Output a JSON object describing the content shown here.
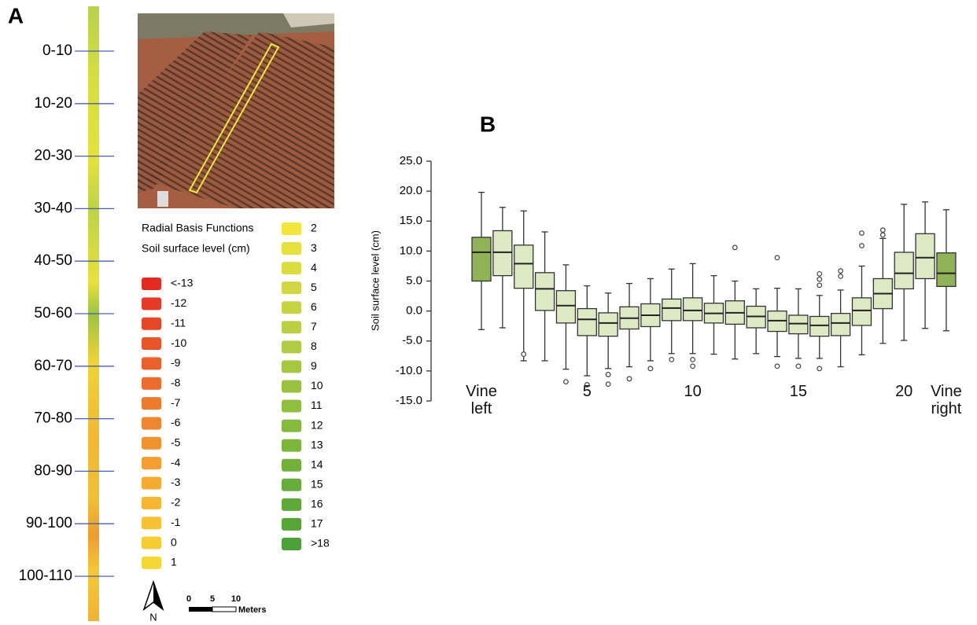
{
  "panel_a": {
    "label": "A",
    "strip_labels": [
      "0-10",
      "10-20",
      "20-30",
      "30-40",
      "40-50",
      "50-60",
      "60-70",
      "70-80",
      "80-90",
      "90-100",
      "100-110"
    ],
    "legend_title": "Radial Basis Functions",
    "legend_subtitle": "Soil surface level (cm)",
    "legend_left": [
      {
        "label": "<-13",
        "color": "#e32b23"
      },
      {
        "label": "-12",
        "color": "#e53a25"
      },
      {
        "label": "-11",
        "color": "#e64727"
      },
      {
        "label": "-10",
        "color": "#e85428"
      },
      {
        "label": "-9",
        "color": "#ea6129"
      },
      {
        "label": "-8",
        "color": "#ec6d2b"
      },
      {
        "label": "-7",
        "color": "#ee7a2c"
      },
      {
        "label": "-6",
        "color": "#f0862d"
      },
      {
        "label": "-5",
        "color": "#f2922e"
      },
      {
        "label": "-4",
        "color": "#f49e2f"
      },
      {
        "label": "-3",
        "color": "#f5aa30"
      },
      {
        "label": "-2",
        "color": "#f6b631"
      },
      {
        "label": "-1",
        "color": "#f7c232"
      },
      {
        "label": "0",
        "color": "#f5cd33"
      },
      {
        "label": "1",
        "color": "#f4d836"
      }
    ],
    "legend_right": [
      {
        "label": "2",
        "color": "#f2e63a"
      },
      {
        "label": "3",
        "color": "#e6e03e"
      },
      {
        "label": "4",
        "color": "#dbdc40"
      },
      {
        "label": "5",
        "color": "#d1d742"
      },
      {
        "label": "6",
        "color": "#c6d343"
      },
      {
        "label": "7",
        "color": "#bbcf43"
      },
      {
        "label": "8",
        "color": "#b1cb42"
      },
      {
        "label": "9",
        "color": "#a6c741"
      },
      {
        "label": "10",
        "color": "#9bc23f"
      },
      {
        "label": "11",
        "color": "#90be3e"
      },
      {
        "label": "12",
        "color": "#86ba3c"
      },
      {
        "label": "13",
        "color": "#7bb63b"
      },
      {
        "label": "14",
        "color": "#71b13a"
      },
      {
        "label": "15",
        "color": "#67ad39"
      },
      {
        "label": "16",
        "color": "#5ea938"
      },
      {
        "label": "17",
        "color": "#55a537"
      },
      {
        "label": ">18",
        "color": "#4ca136"
      }
    ],
    "north": "N",
    "scale_labels": [
      "0",
      "5",
      "10"
    ],
    "scale_unit": "Meters"
  },
  "chart_data": {
    "type": "box",
    "panel_label": "B",
    "y_label": "Soil surface level (cm)",
    "categories": [
      "Vine left",
      null,
      null,
      null,
      null,
      "5",
      null,
      null,
      null,
      null,
      "10",
      null,
      null,
      null,
      null,
      "15",
      null,
      null,
      null,
      null,
      "20",
      null,
      "Vine right"
    ],
    "colors": [
      "#8fb356",
      "#dce9c3",
      "#dce9c3",
      "#dce9c3",
      "#dce9c3",
      "#dce9c3",
      "#dce9c3",
      "#dce9c3",
      "#dce9c3",
      "#dce9c3",
      "#dce9c3",
      "#dce9c3",
      "#dce9c3",
      "#dce9c3",
      "#dce9c3",
      "#dce9c3",
      "#dce9c3",
      "#dce9c3",
      "#dce9c3",
      "#dce9c3",
      "#dce9c3",
      "#dce9c3",
      "#8fb356"
    ],
    "boxes": [
      {
        "low": -3.1,
        "q1": 5.0,
        "median": 9.8,
        "q3": 12.3,
        "high": 19.8,
        "outliers": []
      },
      {
        "low": -2.8,
        "q1": 5.9,
        "median": 9.8,
        "q3": 13.4,
        "high": 17.3,
        "outliers": []
      },
      {
        "low": -8.3,
        "q1": 3.8,
        "median": 7.9,
        "q3": 11.0,
        "high": 16.7,
        "outliers": [
          -7.2
        ]
      },
      {
        "low": -8.3,
        "q1": 0.1,
        "median": 3.7,
        "q3": 6.4,
        "high": 13.2,
        "outliers": []
      },
      {
        "low": -9.7,
        "q1": -2.0,
        "median": 0.9,
        "q3": 3.4,
        "high": 7.7,
        "outliers": [
          -11.8
        ]
      },
      {
        "low": -10.8,
        "q1": -4.1,
        "median": -1.4,
        "q3": 0.4,
        "high": 4.2,
        "outliers": [
          -12.3
        ]
      },
      {
        "low": -9.6,
        "q1": -4.2,
        "median": -2.0,
        "q3": -0.3,
        "high": 3.0,
        "outliers": [
          -10.6,
          -12.2
        ]
      },
      {
        "low": -9.3,
        "q1": -3.0,
        "median": -1.2,
        "q3": 0.7,
        "high": 4.6,
        "outliers": [
          -11.3
        ]
      },
      {
        "low": -8.3,
        "q1": -2.6,
        "median": -0.7,
        "q3": 1.2,
        "high": 5.4,
        "outliers": [
          -9.6
        ]
      },
      {
        "low": -7.1,
        "q1": -1.6,
        "median": 0.5,
        "q3": 2.0,
        "high": 7.0,
        "outliers": [
          -8.1
        ]
      },
      {
        "low": -7.1,
        "q1": -1.6,
        "median": 0.1,
        "q3": 2.2,
        "high": 7.9,
        "outliers": [
          -8.1,
          -9.2
        ]
      },
      {
        "low": -7.2,
        "q1": -2.0,
        "median": -0.4,
        "q3": 1.3,
        "high": 5.9,
        "outliers": []
      },
      {
        "low": -8.0,
        "q1": -2.2,
        "median": -0.3,
        "q3": 1.7,
        "high": 5.0,
        "outliers": [
          10.6
        ]
      },
      {
        "low": -7.1,
        "q1": -2.8,
        "median": -0.9,
        "q3": 0.8,
        "high": 3.7,
        "outliers": []
      },
      {
        "low": -7.6,
        "q1": -3.4,
        "median": -1.6,
        "q3": 0.0,
        "high": 3.8,
        "outliers": [
          8.9,
          -9.2
        ]
      },
      {
        "low": -7.9,
        "q1": -3.8,
        "median": -2.1,
        "q3": -0.7,
        "high": 3.7,
        "outliers": [
          -9.2
        ]
      },
      {
        "low": -7.9,
        "q1": -4.2,
        "median": -2.4,
        "q3": -0.9,
        "high": 2.6,
        "outliers": [
          6.2,
          5.3,
          4.3,
          -9.6
        ]
      },
      {
        "low": -9.3,
        "q1": -4.1,
        "median": -2.0,
        "q3": -0.4,
        "high": 3.5,
        "outliers": [
          6.7,
          5.8
        ]
      },
      {
        "low": -7.3,
        "q1": -2.4,
        "median": 0.1,
        "q3": 2.2,
        "high": 7.5,
        "outliers": [
          13.0,
          10.9
        ]
      },
      {
        "low": -5.4,
        "q1": 0.4,
        "median": 2.9,
        "q3": 5.4,
        "high": 12.1,
        "outliers": [
          13.5,
          12.7
        ]
      },
      {
        "low": -4.9,
        "q1": 3.7,
        "median": 6.3,
        "q3": 9.8,
        "high": 17.8,
        "outliers": []
      },
      {
        "low": -2.9,
        "q1": 5.4,
        "median": 8.9,
        "q3": 12.9,
        "high": 18.2,
        "outliers": []
      },
      {
        "low": -3.3,
        "q1": 4.1,
        "median": 6.3,
        "q3": 9.7,
        "high": 16.9,
        "outliers": []
      }
    ],
    "ylim": [
      -15,
      25
    ],
    "yticks": [
      {
        "value": -15,
        "label": "-15.0"
      },
      {
        "value": -10,
        "label": "-10.0"
      },
      {
        "value": -5,
        "label": "-5.0"
      },
      {
        "value": 0,
        "label": "0.0"
      },
      {
        "value": 5,
        "label": "5.0"
      },
      {
        "value": 10,
        "label": "10.0"
      },
      {
        "value": 15,
        "label": "15.0"
      },
      {
        "value": 20,
        "label": "20.0"
      },
      {
        "value": 25,
        "label": "25.0"
      }
    ]
  }
}
